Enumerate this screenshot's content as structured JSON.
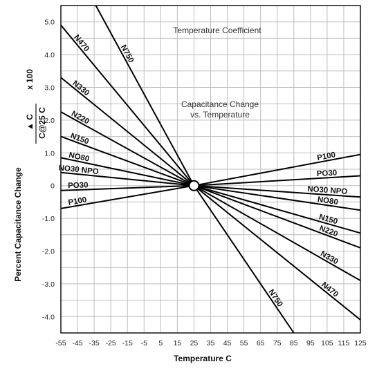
{
  "chart_data": {
    "type": "line",
    "title": "Temperature Coefficient",
    "subtitle_line1": "Capacitance Change",
    "subtitle_line2": "vs. Temperature",
    "xlabel": "Temperature  C",
    "ylabel_left": "Percent Capacitance Change",
    "ylabel_frac_num": "▲ C",
    "ylabel_frac_den": "C@25 C",
    "ylabel_times": "x  100",
    "xlim": [
      -55,
      125
    ],
    "ylim": [
      -4.5,
      5.5
    ],
    "x_ticks": [
      "-55",
      "-45",
      "-35",
      "-25",
      "-15",
      "-5",
      "5",
      "15",
      "25",
      "35",
      "45",
      "55",
      "65",
      "75",
      "85",
      "95",
      "105",
      "115",
      "125"
    ],
    "y_ticks": [
      "5.0",
      "4.0",
      "3.0",
      "2.0",
      "1.0",
      "0",
      "-1.0",
      "-2.0",
      "-3.0",
      "-4.0"
    ],
    "grid": true,
    "series": [
      {
        "name": "N750",
        "label_left": "N750",
        "label_right": "N750",
        "points": [
          [
            -34,
            5.5
          ],
          [
            25,
            0
          ],
          [
            85,
            -4.5
          ]
        ]
      },
      {
        "name": "N470",
        "label_left": "N470",
        "label_right": "N470",
        "points": [
          [
            -55,
            4.9
          ],
          [
            25,
            0
          ],
          [
            125,
            -4.1
          ]
        ]
      },
      {
        "name": "N330",
        "label_left": "N330",
        "label_right": "N330",
        "points": [
          [
            -55,
            3.3
          ],
          [
            25,
            0
          ],
          [
            125,
            -2.9
          ]
        ]
      },
      {
        "name": "N220",
        "label_left": "N220",
        "label_right": "N220",
        "points": [
          [
            -55,
            2.25
          ],
          [
            25,
            0
          ],
          [
            125,
            -1.9
          ]
        ]
      },
      {
        "name": "N150",
        "label_left": "N150",
        "label_right": "N150",
        "points": [
          [
            -55,
            1.5
          ],
          [
            25,
            0
          ],
          [
            125,
            -1.45
          ]
        ]
      },
      {
        "name": "NO80",
        "label_left": "NO80",
        "label_right": "NO80",
        "points": [
          [
            -55,
            0.85
          ],
          [
            25,
            0
          ],
          [
            125,
            -0.75
          ]
        ]
      },
      {
        "name": "NO30 NPO",
        "label_left": "NO30 NPO",
        "label_right": "NO30 NPO",
        "points": [
          [
            -55,
            0.4
          ],
          [
            25,
            0
          ],
          [
            125,
            -0.35
          ]
        ]
      },
      {
        "name": "PO30",
        "label_left": "PO30",
        "label_right": "PO30",
        "points": [
          [
            -55,
            -0.15
          ],
          [
            25,
            0
          ],
          [
            125,
            0.3
          ]
        ]
      },
      {
        "name": "P100",
        "label_left": "P100",
        "label_right": "P100",
        "points": [
          [
            -55,
            -0.7
          ],
          [
            25,
            0
          ],
          [
            125,
            0.95
          ]
        ]
      }
    ]
  }
}
